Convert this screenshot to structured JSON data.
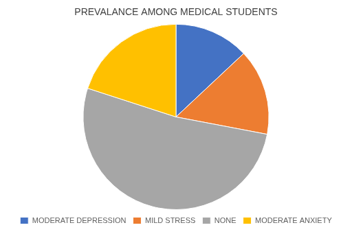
{
  "chart_data": {
    "type": "pie",
    "title": "PREVALANCE AMONG MEDICAL STUDENTS",
    "categories": [
      "MODERATE DEPRESSION",
      "MILD STRESS",
      "NONE",
      "MODERATE ANXIETY"
    ],
    "values": [
      13,
      15,
      52,
      20
    ],
    "colors": [
      "#4472C4",
      "#ED7D31",
      "#A6A6A6",
      "#FFC000"
    ],
    "legend": "bottom"
  }
}
